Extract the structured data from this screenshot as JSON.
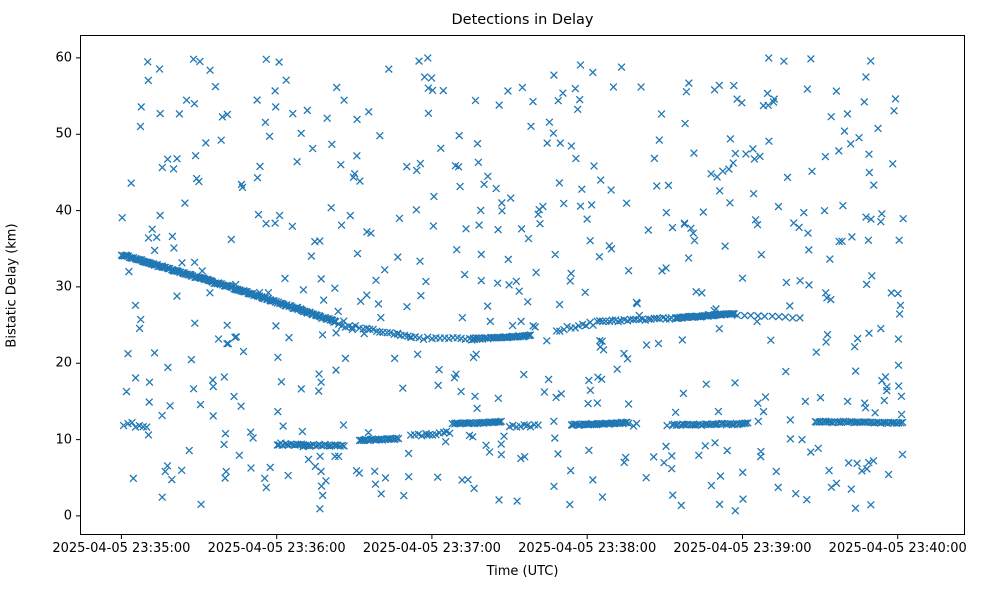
{
  "chart_data": {
    "type": "scatter",
    "title": "Detections in Delay",
    "xlabel": "Time (UTC)",
    "ylabel": "Bistatic Delay (km)",
    "marker": "x",
    "marker_color": "#1f77b4",
    "marker_half_px": 3.4,
    "marker_stroke_px": 1.3,
    "x_base_label": "2025-04-05 23:35:00",
    "xlim_seconds": [
      -16,
      326
    ],
    "ylim": [
      -2.5,
      63
    ],
    "x_ticks": [
      {
        "t": 0,
        "label": "2025-04-05 23:35:00"
      },
      {
        "t": 60,
        "label": "2025-04-05 23:36:00"
      },
      {
        "t": 120,
        "label": "2025-04-05 23:37:00"
      },
      {
        "t": 180,
        "label": "2025-04-05 23:38:00"
      },
      {
        "t": 240,
        "label": "2025-04-05 23:39:00"
      },
      {
        "t": 300,
        "label": "2025-04-05 23:40:00"
      }
    ],
    "y_ticks": [
      0,
      10,
      20,
      30,
      40,
      50,
      60
    ],
    "grid": false,
    "legend": "none",
    "tracks": {
      "description": "dense detection streaks; linear segments t in seconds after 23:35:00, y in km",
      "segments": [
        {
          "t0": 0,
          "t1": 45,
          "y0": 34.2,
          "y1": 29.7,
          "n": 95,
          "jitter": 0.12
        },
        {
          "t0": 45,
          "t1": 83,
          "y0": 29.7,
          "y1": 25.4,
          "n": 85,
          "jitter": 0.12
        },
        {
          "t0": 84,
          "t1": 112,
          "y0": 25.1,
          "y1": 23.4,
          "n": 22,
          "jitter": 0.25
        },
        {
          "t0": 112,
          "t1": 136,
          "y0": 23.3,
          "y1": 23.2,
          "n": 16,
          "jitter": 0.15
        },
        {
          "t0": 136,
          "t1": 158,
          "y0": 23.2,
          "y1": 23.6,
          "n": 42,
          "jitter": 0.1
        },
        {
          "t0": 168,
          "t1": 184,
          "y0": 24.2,
          "y1": 25.3,
          "n": 12,
          "jitter": 0.3
        },
        {
          "t0": 185,
          "t1": 214,
          "y0": 25.5,
          "y1": 25.9,
          "n": 26,
          "jitter": 0.15
        },
        {
          "t0": 214,
          "t1": 237,
          "y0": 25.9,
          "y1": 26.5,
          "n": 48,
          "jitter": 0.1
        },
        {
          "t0": 238,
          "t1": 262,
          "y0": 26.4,
          "y1": 25.8,
          "n": 10,
          "jitter": 0.2
        },
        {
          "t0": 1,
          "t1": 10,
          "y0": 12.0,
          "y1": 11.7,
          "n": 7,
          "jitter": 0.3
        },
        {
          "t0": 60,
          "t1": 86,
          "y0": 9.4,
          "y1": 9.2,
          "n": 34,
          "jitter": 0.12
        },
        {
          "t0": 92,
          "t1": 107,
          "y0": 9.9,
          "y1": 10.1,
          "n": 24,
          "jitter": 0.1
        },
        {
          "t0": 112,
          "t1": 127,
          "y0": 10.6,
          "y1": 11.0,
          "n": 12,
          "jitter": 0.2
        },
        {
          "t0": 128,
          "t1": 147,
          "y0": 12.1,
          "y1": 12.3,
          "n": 30,
          "jitter": 0.1
        },
        {
          "t0": 150,
          "t1": 161,
          "y0": 11.7,
          "y1": 11.9,
          "n": 9,
          "jitter": 0.2
        },
        {
          "t0": 174,
          "t1": 196,
          "y0": 11.9,
          "y1": 12.2,
          "n": 38,
          "jitter": 0.1
        },
        {
          "t0": 213,
          "t1": 242,
          "y0": 11.9,
          "y1": 12.1,
          "n": 40,
          "jitter": 0.1
        },
        {
          "t0": 268,
          "t1": 302,
          "y0": 12.35,
          "y1": 12.2,
          "n": 44,
          "jitter": 0.1
        }
      ]
    },
    "noise": {
      "description": "uniformly scattered clutter detections",
      "count": 560,
      "t_range": [
        0,
        303
      ],
      "y_range": [
        0.5,
        60.0
      ],
      "seed": 1234
    }
  }
}
